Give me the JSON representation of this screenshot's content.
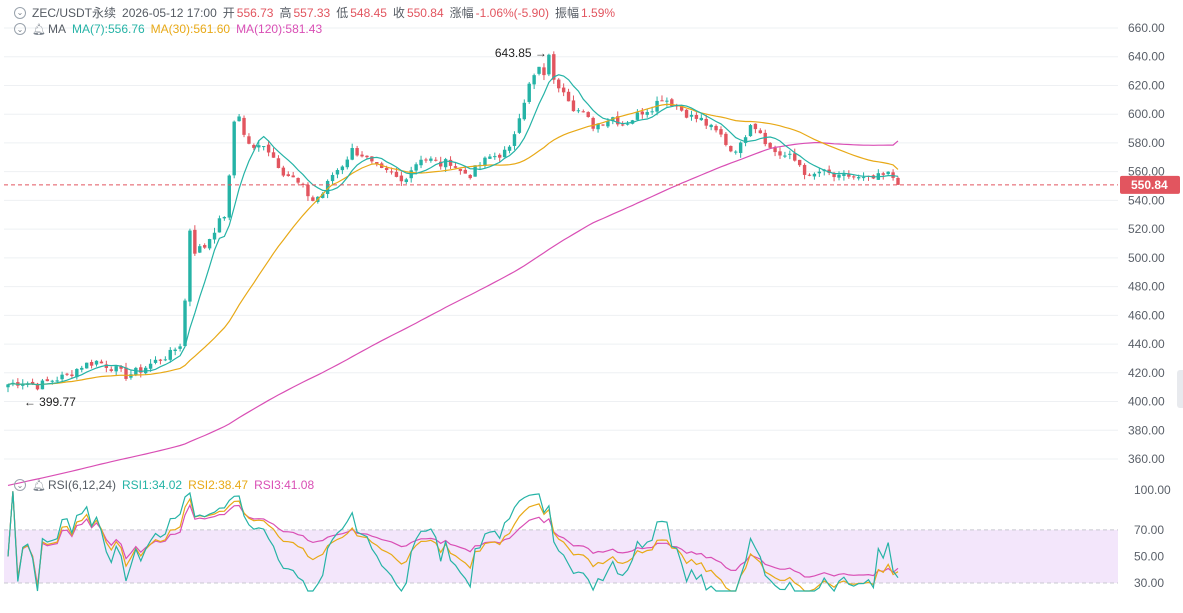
{
  "header": {
    "symbol": "ZEC/USDT永续",
    "datetime": "2026-05-12 17:00",
    "open_label": "开",
    "open": "556.73",
    "high_label": "高",
    "high": "557.33",
    "low_label": "低",
    "low": "548.45",
    "close_label": "收",
    "close": "550.84",
    "change_label": "涨幅",
    "change": "-1.06%(-5.90)",
    "amplitude_label": "振幅",
    "amplitude": "1.59%"
  },
  "ma_legend": {
    "label": "MA",
    "ma7": "MA(7):556.76",
    "ma30": "MA(30):561.60",
    "ma120": "MA(120):581.43"
  },
  "rsi_legend": {
    "label": "RSI(6,12,24)",
    "rsi1": "RSI1:34.02",
    "rsi2": "RSI2:38.47",
    "rsi3": "RSI3:41.08"
  },
  "colors": {
    "up": "#25b3a6",
    "down": "#e2555f",
    "ma7": "#25b3a6",
    "ma30": "#e8a917",
    "ma120": "#d94fb5",
    "rsi_band": "#f3e6fb",
    "grid": "#eef0f3",
    "axis_text": "#5a6069"
  },
  "icons": [
    "chevron-down-icon",
    "bell-icon"
  ],
  "chart_data": [
    {
      "type": "candlestick",
      "title": "",
      "y_ticks": [
        660,
        640,
        620,
        600,
        580,
        560,
        540,
        520,
        500,
        480,
        460,
        440,
        420,
        400,
        380,
        360
      ],
      "ylim": [
        355,
        665
      ],
      "grid": true,
      "last_price": 550.84,
      "last_price_label": "550.84",
      "annotations": [
        {
          "text": "643.85 →",
          "value": 643.85,
          "kind": "high"
        },
        {
          "text": "← 399.77",
          "value": 399.77,
          "kind": "low"
        }
      ],
      "price_path": [
        [
          0,
          412
        ],
        [
          3,
          414
        ],
        [
          6,
          411
        ],
        [
          9,
          415
        ],
        [
          12,
          418
        ],
        [
          15,
          425
        ],
        [
          18,
          428
        ],
        [
          21,
          424
        ],
        [
          24,
          418
        ],
        [
          27,
          422
        ],
        [
          30,
          428
        ],
        [
          33,
          433
        ],
        [
          35,
          440
        ],
        [
          36,
          470
        ],
        [
          37,
          520
        ],
        [
          38,
          505
        ],
        [
          40,
          508
        ],
        [
          42,
          520
        ],
        [
          44,
          530
        ],
        [
          45,
          555
        ],
        [
          46,
          595
        ],
        [
          47,
          600
        ],
        [
          48,
          585
        ],
        [
          50,
          575
        ],
        [
          52,
          580
        ],
        [
          54,
          570
        ],
        [
          56,
          560
        ],
        [
          58,
          555
        ],
        [
          60,
          548
        ],
        [
          62,
          540
        ],
        [
          64,
          545
        ],
        [
          66,
          558
        ],
        [
          68,
          565
        ],
        [
          70,
          575
        ],
        [
          72,
          572
        ],
        [
          74,
          565
        ],
        [
          76,
          560
        ],
        [
          78,
          558
        ],
        [
          80,
          553
        ],
        [
          82,
          562
        ],
        [
          84,
          570
        ],
        [
          86,
          568
        ],
        [
          88,
          565
        ],
        [
          90,
          567
        ],
        [
          92,
          560
        ],
        [
          94,
          558
        ],
        [
          96,
          565
        ],
        [
          98,
          570
        ],
        [
          100,
          572
        ],
        [
          102,
          575
        ],
        [
          104,
          600
        ],
        [
          106,
          620
        ],
        [
          108,
          632
        ],
        [
          109,
          625
        ],
        [
          110,
          643
        ],
        [
          111,
          622
        ],
        [
          113,
          618
        ],
        [
          115,
          605
        ],
        [
          117,
          600
        ],
        [
          119,
          592
        ],
        [
          121,
          595
        ],
        [
          123,
          598
        ],
        [
          125,
          593
        ],
        [
          127,
          597
        ],
        [
          129,
          602
        ],
        [
          131,
          605
        ],
        [
          133,
          612
        ],
        [
          135,
          608
        ],
        [
          137,
          603
        ],
        [
          139,
          598
        ],
        [
          141,
          596
        ],
        [
          143,
          590
        ],
        [
          145,
          585
        ],
        [
          147,
          575
        ],
        [
          149,
          578
        ],
        [
          151,
          595
        ],
        [
          153,
          588
        ],
        [
          155,
          576
        ],
        [
          157,
          572
        ],
        [
          159,
          570
        ],
        [
          161,
          565
        ],
        [
          163,
          555
        ],
        [
          165,
          560
        ],
        [
          167,
          558
        ],
        [
          169,
          555
        ],
        [
          171,
          557
        ],
        [
          173,
          555
        ],
        [
          175,
          554
        ],
        [
          177,
          556
        ],
        [
          179,
          558
        ],
        [
          180,
          556
        ],
        [
          181,
          550.84
        ]
      ],
      "ma7_end": 556.76,
      "ma30_end": 561.6,
      "ma120_end": 581.43
    },
    {
      "type": "line",
      "title": "",
      "y_ticks": [
        100,
        70,
        50,
        30
      ],
      "ylim": [
        20,
        105
      ],
      "band": [
        30,
        70
      ],
      "series": [
        {
          "name": "RSI1",
          "end": 34.02
        },
        {
          "name": "RSI2",
          "end": 38.47
        },
        {
          "name": "RSI3",
          "end": 41.08
        }
      ]
    }
  ]
}
